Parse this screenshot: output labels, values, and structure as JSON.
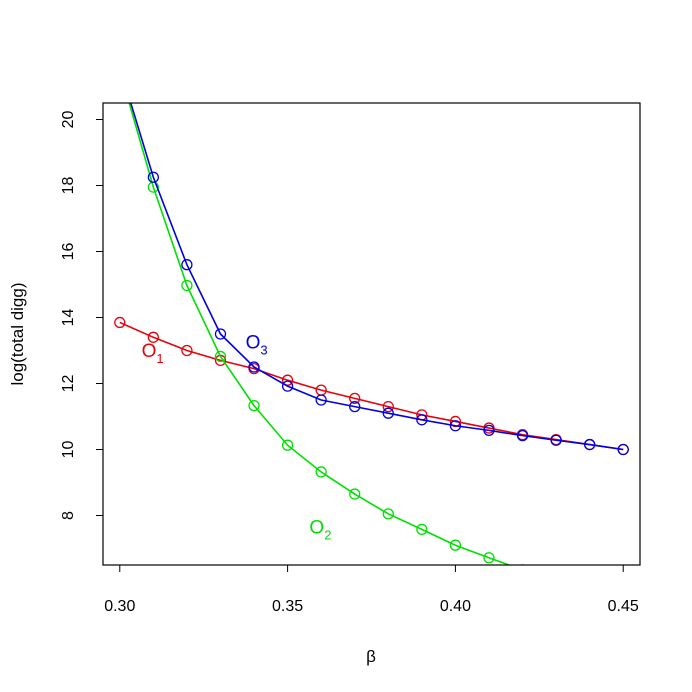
{
  "chart_data": {
    "type": "line",
    "title": "",
    "xlabel": "β",
    "ylabel": "log(total digg)",
    "xlim": [
      0.295,
      0.455
    ],
    "ylim": [
      6.5,
      20.5
    ],
    "xticks": [
      0.3,
      0.35,
      0.4,
      0.45
    ],
    "xtick_labels": [
      "0.30",
      "0.35",
      "0.40",
      "0.45"
    ],
    "yticks": [
      8,
      10,
      12,
      14,
      16,
      18,
      20
    ],
    "ytick_labels": [
      "8",
      "10",
      "12",
      "14",
      "16",
      "18",
      "20"
    ],
    "grid": false,
    "legend": "none",
    "series": [
      {
        "name": "O1",
        "color": "#e8000b",
        "x": [
          0.3,
          0.31,
          0.32,
          0.33,
          0.34,
          0.35,
          0.36,
          0.37,
          0.38,
          0.39,
          0.4,
          0.41,
          0.42,
          0.43,
          0.44,
          0.45
        ],
        "y": [
          13.85,
          13.4,
          13.0,
          12.7,
          12.45,
          12.1,
          11.8,
          11.55,
          11.3,
          11.05,
          10.85,
          10.65,
          10.45,
          10.3,
          10.15,
          10.0
        ]
      },
      {
        "name": "O2",
        "color": "#00e000",
        "x": [
          0.3,
          0.31,
          0.32,
          0.33,
          0.34,
          0.35,
          0.36,
          0.37,
          0.38,
          0.39,
          0.4,
          0.41,
          0.42
        ],
        "y": [
          21.5,
          17.95,
          14.97,
          12.82,
          11.33,
          10.13,
          9.32,
          8.65,
          8.05,
          7.58,
          7.1,
          6.72,
          6.35
        ]
      },
      {
        "name": "O3",
        "color": "#0000e0",
        "x": [
          0.3,
          0.31,
          0.32,
          0.33,
          0.34,
          0.35,
          0.36,
          0.37,
          0.38,
          0.39,
          0.4,
          0.41,
          0.42,
          0.43,
          0.44,
          0.45
        ],
        "y": [
          21.6,
          18.25,
          15.6,
          13.5,
          12.5,
          11.92,
          11.5,
          11.3,
          11.1,
          10.9,
          10.72,
          10.58,
          10.42,
          10.28,
          10.15,
          10.0
        ]
      }
    ],
    "annotations": [
      {
        "main": "O",
        "sub": "1",
        "x": 0.3065,
        "y": 12.8,
        "color": "#e8000b"
      },
      {
        "main": "O",
        "sub": "2",
        "x": 0.3565,
        "y": 7.45,
        "color": "#00e000"
      },
      {
        "main": "O",
        "sub": "3",
        "x": 0.3375,
        "y": 13.06,
        "color": "#0000e0"
      }
    ]
  }
}
